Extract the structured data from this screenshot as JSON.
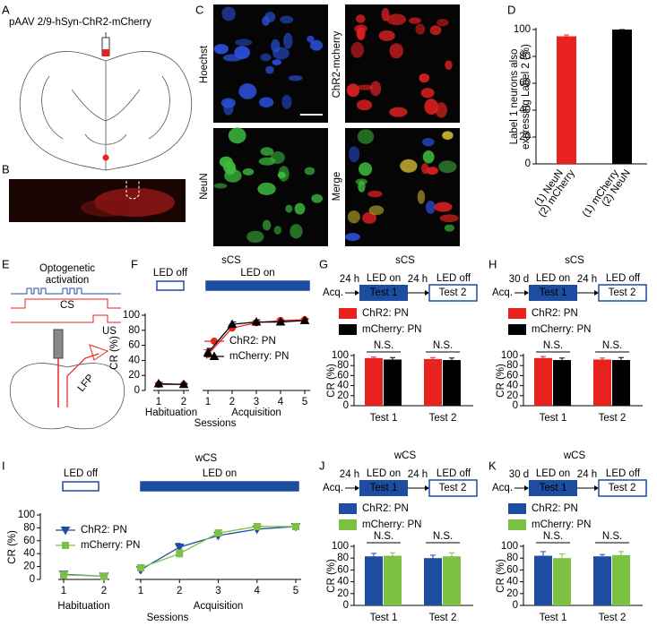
{
  "panel_labels": [
    "A",
    "B",
    "C",
    "D",
    "E",
    "F",
    "G",
    "H",
    "I",
    "J",
    "K"
  ],
  "panel_a": {
    "title": "pAAV 2/9-hSyn-ChR2-mCherry"
  },
  "panel_c": {
    "image_labels": [
      "Hoechst",
      "ChR2-mcherry",
      "NeuN",
      "Merge"
    ]
  },
  "panel_e": {
    "title_lines": [
      "Optogenetic",
      "activation"
    ],
    "cs": "CS",
    "us": "US",
    "lfp": "LFP"
  },
  "chart_data": [
    {
      "type": "bar",
      "ylabel_lines": [
        "Label 1 neurons also",
        "expressing Label 2 (%)"
      ],
      "categories": [
        [
          "(1) NeuN",
          "(2) mCherry"
        ],
        [
          "(1) mCherry",
          "(2) NeuN"
        ]
      ],
      "values": [
        95,
        100
      ],
      "errors": [
        1,
        0
      ],
      "colors": [
        "#e8231f",
        "#000000"
      ],
      "ylim": [
        0,
        100
      ],
      "yticks": [
        0,
        20,
        40,
        60,
        80,
        100
      ]
    },
    {
      "type": "line",
      "title": "sCS",
      "led_labels": [
        "LED off",
        "LED on"
      ],
      "led_color": "#1c4da1",
      "groups": [
        {
          "name": "Habituation",
          "categories": [
            1,
            2
          ]
        },
        {
          "name": "Acquisition",
          "categories": [
            1,
            2,
            3,
            4,
            5
          ]
        }
      ],
      "xlabel": "Sessions",
      "ylabel": "CR (%)",
      "ylim": [
        0,
        100
      ],
      "yticks": [
        0,
        20,
        40,
        60,
        80,
        100
      ],
      "series": [
        {
          "name": "ChR2: PN",
          "color": "#e8231f",
          "marker": "circle",
          "values": [
            [
              8,
              8
            ],
            [
              48,
              83,
              90,
              93,
              94
            ]
          ],
          "errors": [
            [
              2,
              1
            ],
            [
              6,
              4,
              3,
              2,
              2
            ]
          ]
        },
        {
          "name": "mCherry: PN",
          "color": "#000000",
          "marker": "triangle",
          "values": [
            [
              9,
              8
            ],
            [
              50,
              88,
              91,
              91,
              93
            ]
          ],
          "errors": [
            [
              2,
              1
            ],
            [
              6,
              3,
              3,
              2,
              2
            ]
          ]
        }
      ]
    },
    {
      "type": "bar",
      "title": "sCS",
      "timeline": {
        "start": "Acq.",
        "delay_1": "24 h",
        "phase_1": "LED on",
        "test_1": "Test 1",
        "delay_2": "24 h",
        "phase_2": "LED off",
        "test_2": "Test 2"
      },
      "categories": [
        "Test 1",
        "Test 2"
      ],
      "annotations": [
        "N.S.",
        "N.S."
      ],
      "ylabel": "CR (%)",
      "ylim": [
        0,
        100
      ],
      "yticks": [
        0,
        20,
        40,
        60,
        80,
        100
      ],
      "series": [
        {
          "name": "ChR2: PN",
          "color": "#e8231f",
          "values": [
            95,
            93
          ],
          "errors": [
            2,
            3
          ]
        },
        {
          "name": "mCherry: PN",
          "color": "#000000",
          "values": [
            92,
            91
          ],
          "errors": [
            4,
            4
          ]
        }
      ]
    },
    {
      "type": "bar",
      "title": "sCS",
      "timeline": {
        "start": "Acq.",
        "delay_1": "30 d",
        "phase_1": "LED on",
        "test_1": "Test 1",
        "delay_2": "24 h",
        "phase_2": "LED off",
        "test_2": "Test 2"
      },
      "categories": [
        "Test 1",
        "Test 2"
      ],
      "annotations": [
        "N.S.",
        "N.S."
      ],
      "ylabel": "CR (%)",
      "ylim": [
        0,
        100
      ],
      "yticks": [
        0,
        20,
        40,
        60,
        80,
        100
      ],
      "series": [
        {
          "name": "ChR2: PN",
          "color": "#e8231f",
          "values": [
            95,
            92
          ],
          "errors": [
            3,
            3
          ]
        },
        {
          "name": "mCherry: PN",
          "color": "#000000",
          "values": [
            91,
            91
          ],
          "errors": [
            4,
            5
          ]
        }
      ]
    },
    {
      "type": "line",
      "title": "wCS",
      "led_labels": [
        "LED off",
        "LED on"
      ],
      "led_color": "#1c4da1",
      "groups": [
        {
          "name": "Habituation",
          "categories": [
            1,
            2
          ]
        },
        {
          "name": "Acquisition",
          "categories": [
            1,
            2,
            3,
            4,
            5
          ]
        }
      ],
      "xlabel": "Sessions",
      "ylabel": "CR (%)",
      "ylim": [
        0,
        100
      ],
      "yticks": [
        0,
        20,
        40,
        60,
        80,
        100
      ],
      "series": [
        {
          "name": "ChR2: PN",
          "color": "#1c4da1",
          "marker": "triangle-down",
          "values": [
            [
              8,
              5
            ],
            [
              15,
              50,
              68,
              78,
              82
            ]
          ],
          "errors": [
            [
              3,
              2
            ],
            [
              5,
              6,
              5,
              4,
              4
            ]
          ]
        },
        {
          "name": "mCherry: PN",
          "color": "#7dc142",
          "marker": "square",
          "values": [
            [
              7,
              5
            ],
            [
              18,
              40,
              72,
              82,
              82
            ]
          ],
          "errors": [
            [
              3,
              2
            ],
            [
              5,
              6,
              5,
              4,
              4
            ]
          ]
        }
      ]
    },
    {
      "type": "bar",
      "title": "wCS",
      "timeline": {
        "start": "Acq.",
        "delay_1": "24 h",
        "phase_1": "LED on",
        "test_1": "Test 1",
        "delay_2": "24 h",
        "phase_2": "LED off",
        "test_2": "Test 2"
      },
      "categories": [
        "Test 1",
        "Test 2"
      ],
      "annotations": [
        "N.S.",
        "N.S."
      ],
      "ylabel": "CR (%)",
      "ylim": [
        0,
        100
      ],
      "yticks": [
        0,
        20,
        40,
        60,
        80,
        100
      ],
      "series": [
        {
          "name": "ChR2: PN",
          "color": "#1c4da1",
          "values": [
            83,
            80
          ],
          "errors": [
            5,
            5
          ]
        },
        {
          "name": "mCherry: PN",
          "color": "#7dc142",
          "values": [
            84,
            83
          ],
          "errors": [
            5,
            6
          ]
        }
      ]
    },
    {
      "type": "bar",
      "title": "wCS",
      "timeline": {
        "start": "Acq.",
        "delay_1": "30 d",
        "phase_1": "LED on",
        "test_1": "Test 1",
        "delay_2": "24 h",
        "phase_2": "LED off",
        "test_2": "Test 2"
      },
      "categories": [
        "Test 1",
        "Test 2"
      ],
      "annotations": [
        "N.S.",
        "N.S."
      ],
      "ylabel": "CR (%)",
      "ylim": [
        0,
        100
      ],
      "yticks": [
        0,
        20,
        40,
        60,
        80,
        100
      ],
      "series": [
        {
          "name": "ChR2: PN",
          "color": "#1c4da1",
          "values": [
            84,
            83
          ],
          "errors": [
            7,
            3
          ]
        },
        {
          "name": "mCherry: PN",
          "color": "#7dc142",
          "values": [
            80,
            85
          ],
          "errors": [
            7,
            6
          ]
        }
      ]
    }
  ]
}
